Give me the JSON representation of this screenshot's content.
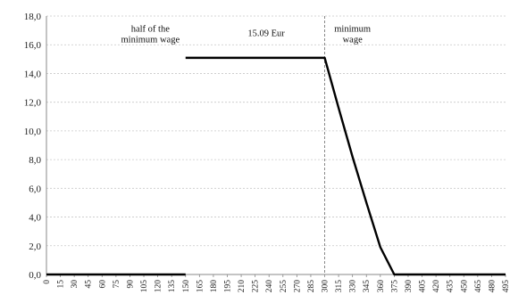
{
  "chart_data": {
    "type": "line",
    "title": "",
    "xlabel": "",
    "ylabel": "",
    "ylim": [
      0,
      18
    ],
    "y_ticks": [
      "0,0",
      "2,0",
      "4,0",
      "6,0",
      "8,0",
      "10,0",
      "12,0",
      "14,0",
      "16,0",
      "18,0"
    ],
    "xlim": [
      0,
      495
    ],
    "x_tick_labels": [
      "0",
      "15",
      "30",
      "45",
      "60",
      "75",
      "90",
      "105",
      "120",
      "135",
      "150",
      "165",
      "180",
      "195",
      "210",
      "225",
      "240",
      "255",
      "270",
      "285",
      "300",
      "315",
      "330",
      "345",
      "360",
      "375",
      "390",
      "405",
      "420",
      "435",
      "450",
      "465",
      "480",
      "495"
    ],
    "x_tick_values": [
      0,
      15,
      30,
      45,
      60,
      75,
      90,
      105,
      120,
      135,
      150,
      165,
      180,
      195,
      210,
      225,
      240,
      255,
      270,
      285,
      300,
      315,
      330,
      345,
      360,
      375,
      390,
      405,
      420,
      435,
      450,
      465,
      480,
      495
    ],
    "grid": true,
    "series": [
      {
        "x": [
          0,
          150,
          150,
          300,
          315,
          330,
          345,
          360,
          375,
          385,
          390,
          495
        ],
        "y": [
          0,
          0,
          15.09,
          15.09,
          11.6,
          8.2,
          5.0,
          1.9,
          0.0,
          0.0,
          0.0,
          0.0
        ],
        "segments": [
          [
            0,
            1
          ],
          [
            2,
            11
          ]
        ]
      }
    ],
    "reference_line_x": 300,
    "annotations": [
      {
        "lines": [
          "half of the",
          "minimum wage"
        ],
        "x": 112,
        "y": 16.9
      },
      {
        "lines": [
          "15.09 Eur"
        ],
        "x": 237,
        "y": 16.6
      },
      {
        "lines": [
          "minimum",
          "wage"
        ],
        "x": 330,
        "y": 16.9
      }
    ]
  }
}
